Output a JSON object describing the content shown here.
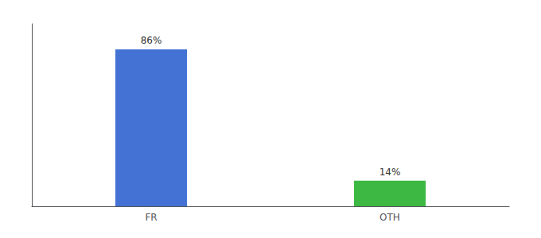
{
  "chart_data": {
    "type": "bar",
    "categories": [
      "FR",
      "OTH"
    ],
    "values": [
      86,
      14
    ],
    "value_labels": [
      "86%",
      "14%"
    ],
    "colors": [
      "#4472d4",
      "#3cb843"
    ],
    "ylim": [
      0,
      100
    ],
    "tick_labels": "x",
    "data_labels": true,
    "grid": false
  }
}
